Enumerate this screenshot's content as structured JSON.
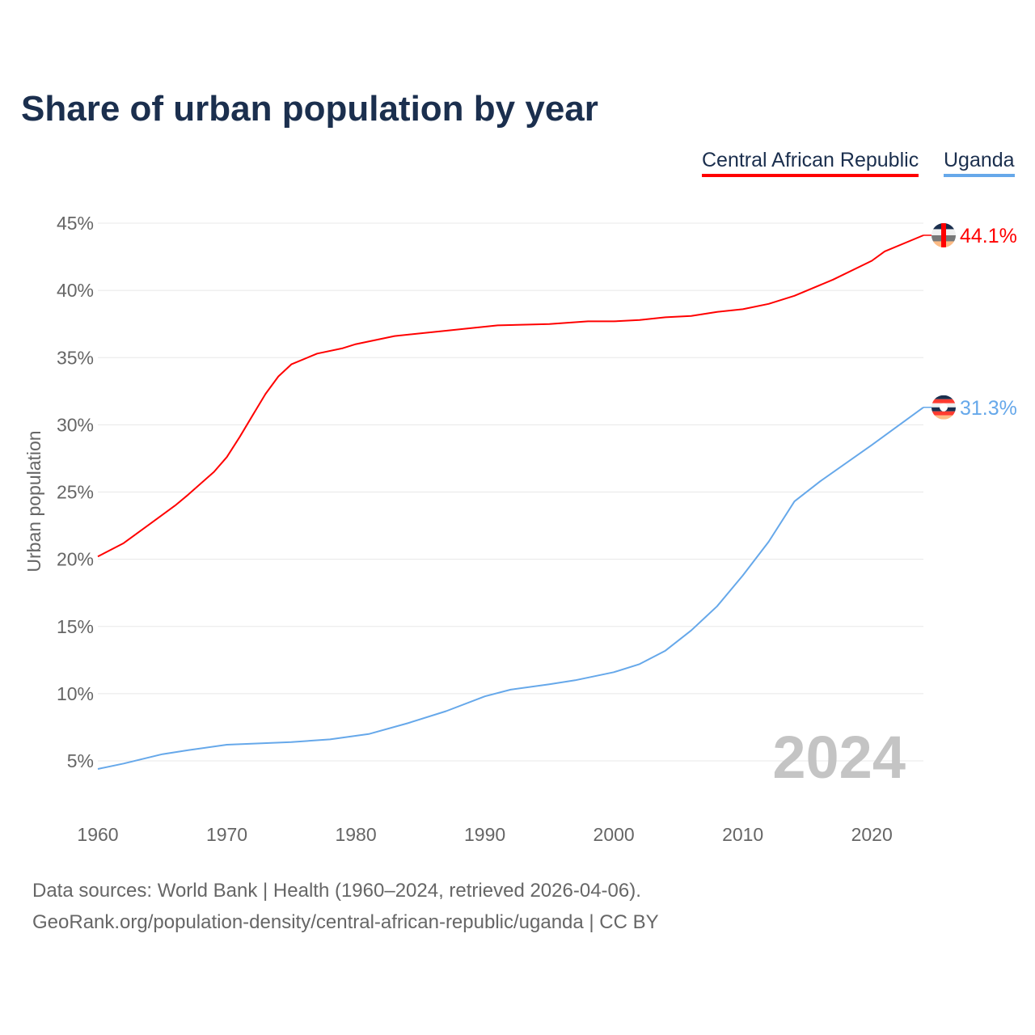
{
  "chart_data": {
    "type": "line",
    "title": "Share of urban population by year",
    "xlabel": "",
    "ylabel": "Urban population",
    "xlim": [
      1960,
      2024
    ],
    "ylim": [
      3,
      45
    ],
    "x_ticks": [
      "1960",
      "1970",
      "1980",
      "1990",
      "2000",
      "2010",
      "2020"
    ],
    "y_ticks": [
      "5%",
      "10%",
      "15%",
      "20%",
      "25%",
      "30%",
      "35%",
      "40%",
      "45%"
    ],
    "grid": true,
    "legend_placement": "top-right",
    "year_watermark": "2024",
    "series": [
      {
        "name": "Central African Republic",
        "color": "#ff0000",
        "end_label": "44.1%",
        "flag": "central-african-republic-flag",
        "x": [
          1960,
          1962,
          1964,
          1966,
          1967,
          1969,
          1970,
          1971,
          1972,
          1973,
          1974,
          1975,
          1977,
          1979,
          1980,
          1983,
          1987,
          1991,
          1995,
          1998,
          2000,
          2002,
          2004,
          2006,
          2008,
          2010,
          2012,
          2014,
          2017,
          2020,
          2021,
          2024
        ],
        "y": [
          20.2,
          21.2,
          22.6,
          24.0,
          24.8,
          26.5,
          27.6,
          29.1,
          30.7,
          32.3,
          33.6,
          34.5,
          35.3,
          35.7,
          36.0,
          36.6,
          37.0,
          37.4,
          37.5,
          37.7,
          37.7,
          37.8,
          38.0,
          38.1,
          38.4,
          38.6,
          39.0,
          39.6,
          40.8,
          42.2,
          42.9,
          44.1
        ]
      },
      {
        "name": "Uganda",
        "color": "#66a8ea",
        "end_label": "31.3%",
        "flag": "uganda-flag",
        "x": [
          1960,
          1962,
          1965,
          1967,
          1970,
          1975,
          1978,
          1981,
          1984,
          1987,
          1990,
          1992,
          1995,
          1997,
          2000,
          2002,
          2004,
          2006,
          2008,
          2010,
          2012,
          2014,
          2016,
          2020,
          2024
        ],
        "y": [
          4.4,
          4.8,
          5.5,
          5.8,
          6.2,
          6.4,
          6.6,
          7.0,
          7.8,
          8.7,
          9.8,
          10.3,
          10.7,
          11.0,
          11.6,
          12.2,
          13.2,
          14.7,
          16.5,
          18.8,
          21.3,
          24.3,
          25.8,
          28.5,
          31.3
        ]
      }
    ]
  },
  "footer": {
    "line1": "Data sources: World Bank | Health (1960–2024, retrieved 2026-04-06).",
    "line2": "GeoRank.org/population-density/central-african-republic/uganda | CC BY"
  }
}
